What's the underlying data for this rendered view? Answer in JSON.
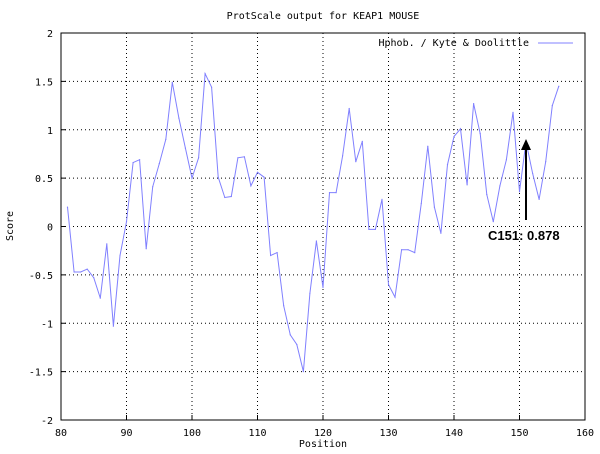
{
  "chart_data": {
    "type": "line",
    "title": "ProtScale output for KEAP1 MOUSE",
    "xlabel": "Position",
    "ylabel": "Score",
    "xlim": [
      80,
      160
    ],
    "ylim": [
      -2,
      2
    ],
    "xticks": [
      80,
      90,
      100,
      110,
      120,
      130,
      140,
      150,
      160
    ],
    "yticks": [
      -2,
      -1.5,
      -1,
      -0.5,
      0,
      0.5,
      1,
      1.5,
      2
    ],
    "grid": true,
    "legend_position": "top-right",
    "series": [
      {
        "name": "Hphob. / Kyte & Doolittle",
        "color": "#8080ff",
        "x": [
          81,
          82,
          83,
          84,
          85,
          86,
          87,
          88,
          89,
          90,
          91,
          92,
          93,
          94,
          95,
          96,
          97,
          98,
          99,
          100,
          101,
          102,
          103,
          104,
          105,
          106,
          107,
          108,
          109,
          110,
          111,
          112,
          113,
          114,
          115,
          116,
          117,
          118,
          119,
          120,
          121,
          122,
          123,
          124,
          125,
          126,
          127,
          128,
          129,
          130,
          131,
          132,
          133,
          134,
          135,
          136,
          137,
          138,
          139,
          140,
          141,
          142,
          143,
          144,
          145,
          146,
          147,
          148,
          149,
          150,
          151,
          152,
          153,
          154,
          155,
          156
        ],
        "y": [
          0.2,
          -0.47,
          -0.47,
          -0.44,
          -0.53,
          -0.74,
          -0.18,
          -1.03,
          -0.3,
          0.05,
          0.66,
          0.69,
          -0.23,
          0.41,
          0.65,
          0.9,
          1.49,
          1.12,
          0.81,
          0.5,
          0.71,
          1.58,
          1.44,
          0.51,
          0.3,
          0.31,
          0.71,
          0.72,
          0.42,
          0.56,
          0.51,
          -0.3,
          -0.27,
          -0.82,
          -1.12,
          -1.22,
          -1.5,
          -0.69,
          -0.15,
          -0.63,
          0.35,
          0.35,
          0.73,
          1.22,
          0.67,
          0.88,
          -0.03,
          -0.03,
          0.28,
          -0.6,
          -0.73,
          -0.24,
          -0.24,
          -0.27,
          0.24,
          0.83,
          0.2,
          -0.07,
          0.64,
          0.93,
          1.01,
          0.43,
          1.27,
          0.96,
          0.33,
          0.05,
          0.42,
          0.69,
          1.18,
          0.36,
          0.878,
          0.55,
          0.28,
          0.67,
          1.25,
          1.45
        ]
      }
    ],
    "annotations": [
      {
        "label": "C151: 0.878",
        "x": 151,
        "y": 0.878
      }
    ]
  }
}
